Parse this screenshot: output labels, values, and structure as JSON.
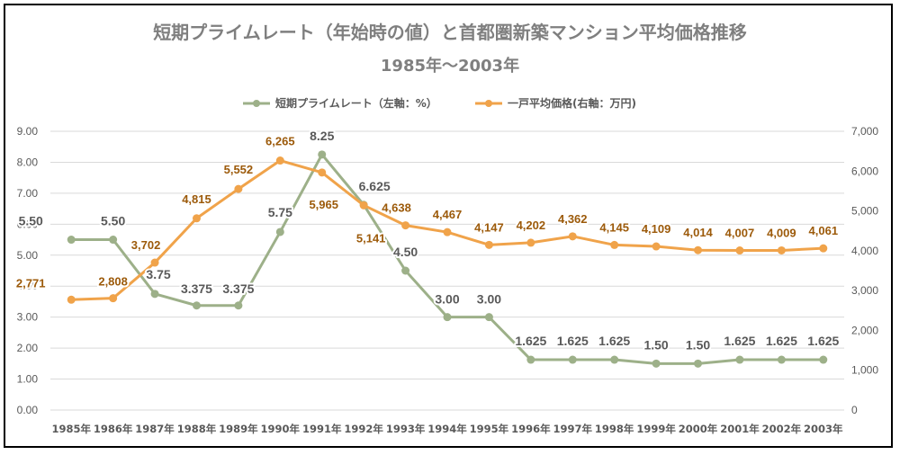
{
  "chart_data": {
    "type": "line",
    "title": "短期プライムレート（年始時の値）と首都圏新築マンション平均価格推移",
    "subtitle": "1985年～2003年",
    "categories": [
      "1985年",
      "1986年",
      "1987年",
      "1988年",
      "1989年",
      "1990年",
      "1991年",
      "1992年",
      "1993年",
      "1994年",
      "1995年",
      "1996年",
      "1997年",
      "1998年",
      "1999年",
      "2000年",
      "2001年",
      "2002年",
      "2003年"
    ],
    "y_left_ticks": [
      "0.00",
      "1.00",
      "2.00",
      "3.00",
      "4.00",
      "5.00",
      "6.00",
      "7.00",
      "8.00",
      "9.00"
    ],
    "y_right_ticks": [
      "0",
      "1,000",
      "2,000",
      "3,000",
      "4,000",
      "5,000",
      "6,000",
      "7,000"
    ],
    "ylim_left": [
      0,
      9
    ],
    "ylim_right": [
      0,
      7000
    ],
    "grid": true,
    "legend_position": "top-center",
    "series": [
      {
        "name": "短期プライムレート（左軸：%）",
        "axis": "left",
        "color": "#9db089",
        "values": [
          5.5,
          5.5,
          3.75,
          3.375,
          3.375,
          5.75,
          8.25,
          6.625,
          4.5,
          3.0,
          3.0,
          1.625,
          1.625,
          1.625,
          1.5,
          1.5,
          1.625,
          1.625,
          1.625
        ],
        "labels": [
          "5.50",
          "5.50",
          "3.75",
          "3.375",
          "3.375",
          "5.75",
          "8.25",
          "6.625",
          "4.50",
          "3.00",
          "3.00",
          "1.625",
          "1.625",
          "1.625",
          "1.50",
          "1.50",
          "1.625",
          "1.625",
          "1.625"
        ]
      },
      {
        "name": "一戸平均価格(右軸：万円)",
        "axis": "right",
        "color": "#f0a34a",
        "values": [
          2771,
          2808,
          3702,
          4815,
          5552,
          6265,
          5965,
          5141,
          4638,
          4467,
          4147,
          4202,
          4362,
          4145,
          4109,
          4014,
          4007,
          4009,
          4061
        ],
        "labels": [
          "2,771",
          "2,808",
          "3,702",
          "4,815",
          "5,552",
          "6,265",
          "5,965",
          "5,141",
          "4,638",
          "4,467",
          "4,147",
          "4,202",
          "4,362",
          "4,145",
          "4,109",
          "4,014",
          "4,007",
          "4,009",
          "4,061"
        ]
      }
    ]
  }
}
